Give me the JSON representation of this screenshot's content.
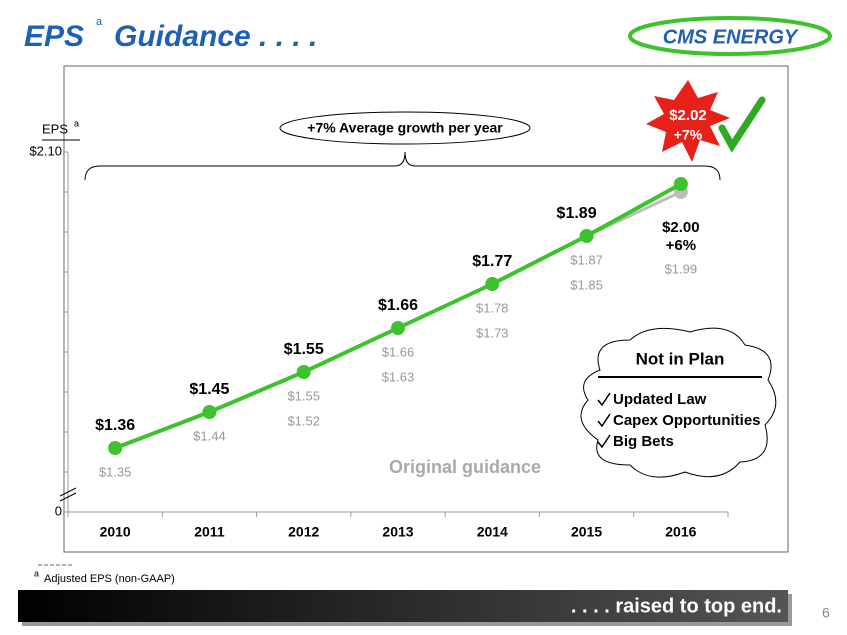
{
  "header": {
    "title": "EPS",
    "title_note": "a",
    "title_rest": "Guidance . . . .",
    "logo": "CMS ENERGY"
  },
  "chart_data": {
    "type": "line",
    "y_label": "EPS",
    "y_label_note": "a",
    "categories": [
      "2010",
      "2011",
      "2012",
      "2013",
      "2014",
      "2015",
      "2016"
    ],
    "series": [
      {
        "color": "#3cc22a",
        "values": [
          1.36,
          1.45,
          1.55,
          1.66,
          1.77,
          1.89,
          2.02
        ],
        "value_labels": [
          "$1.36",
          "$1.45",
          "$1.55",
          "$1.66",
          "$1.77",
          "$1.89",
          "$2.02"
        ]
      },
      {
        "color": "#bdbdbd",
        "values": [
          null,
          null,
          null,
          null,
          null,
          1.89,
          2.0
        ],
        "value_labels": [
          null,
          null,
          null,
          null,
          null,
          null,
          "$2.00"
        ]
      }
    ],
    "ylim": [
      1.2,
      2.1
    ],
    "yticks": [
      {
        "value": 2.1,
        "label": "$2.10"
      },
      0
    ],
    "yminor_ticks": [
      2.0,
      1.9,
      1.8,
      1.7,
      1.6,
      1.5,
      1.4,
      1.3
    ],
    "axis_break": true,
    "annotations": {
      "growth": "+7% Average growth per year",
      "top_growth": "+7%",
      "alt_growth": "+6%",
      "original_label": "Original guidance",
      "original_guidance": [
        [
          "$1.35"
        ],
        [
          "$1.44"
        ],
        [
          "$1.55",
          "$1.52"
        ],
        [
          "$1.66",
          "$1.63"
        ],
        [
          "$1.78",
          "$1.73"
        ],
        [
          "$1.87",
          "$1.85"
        ],
        [
          "$1.99"
        ]
      ]
    },
    "callout": {
      "title": "Not in Plan",
      "items": [
        "Updated Law",
        "Capex Opportunities",
        "Big Bets"
      ]
    }
  },
  "footnote": {
    "mark": "a",
    "text": "Adjusted EPS (non-GAAP)"
  },
  "banner": ". . . . raised to top end.",
  "page_number": "6"
}
